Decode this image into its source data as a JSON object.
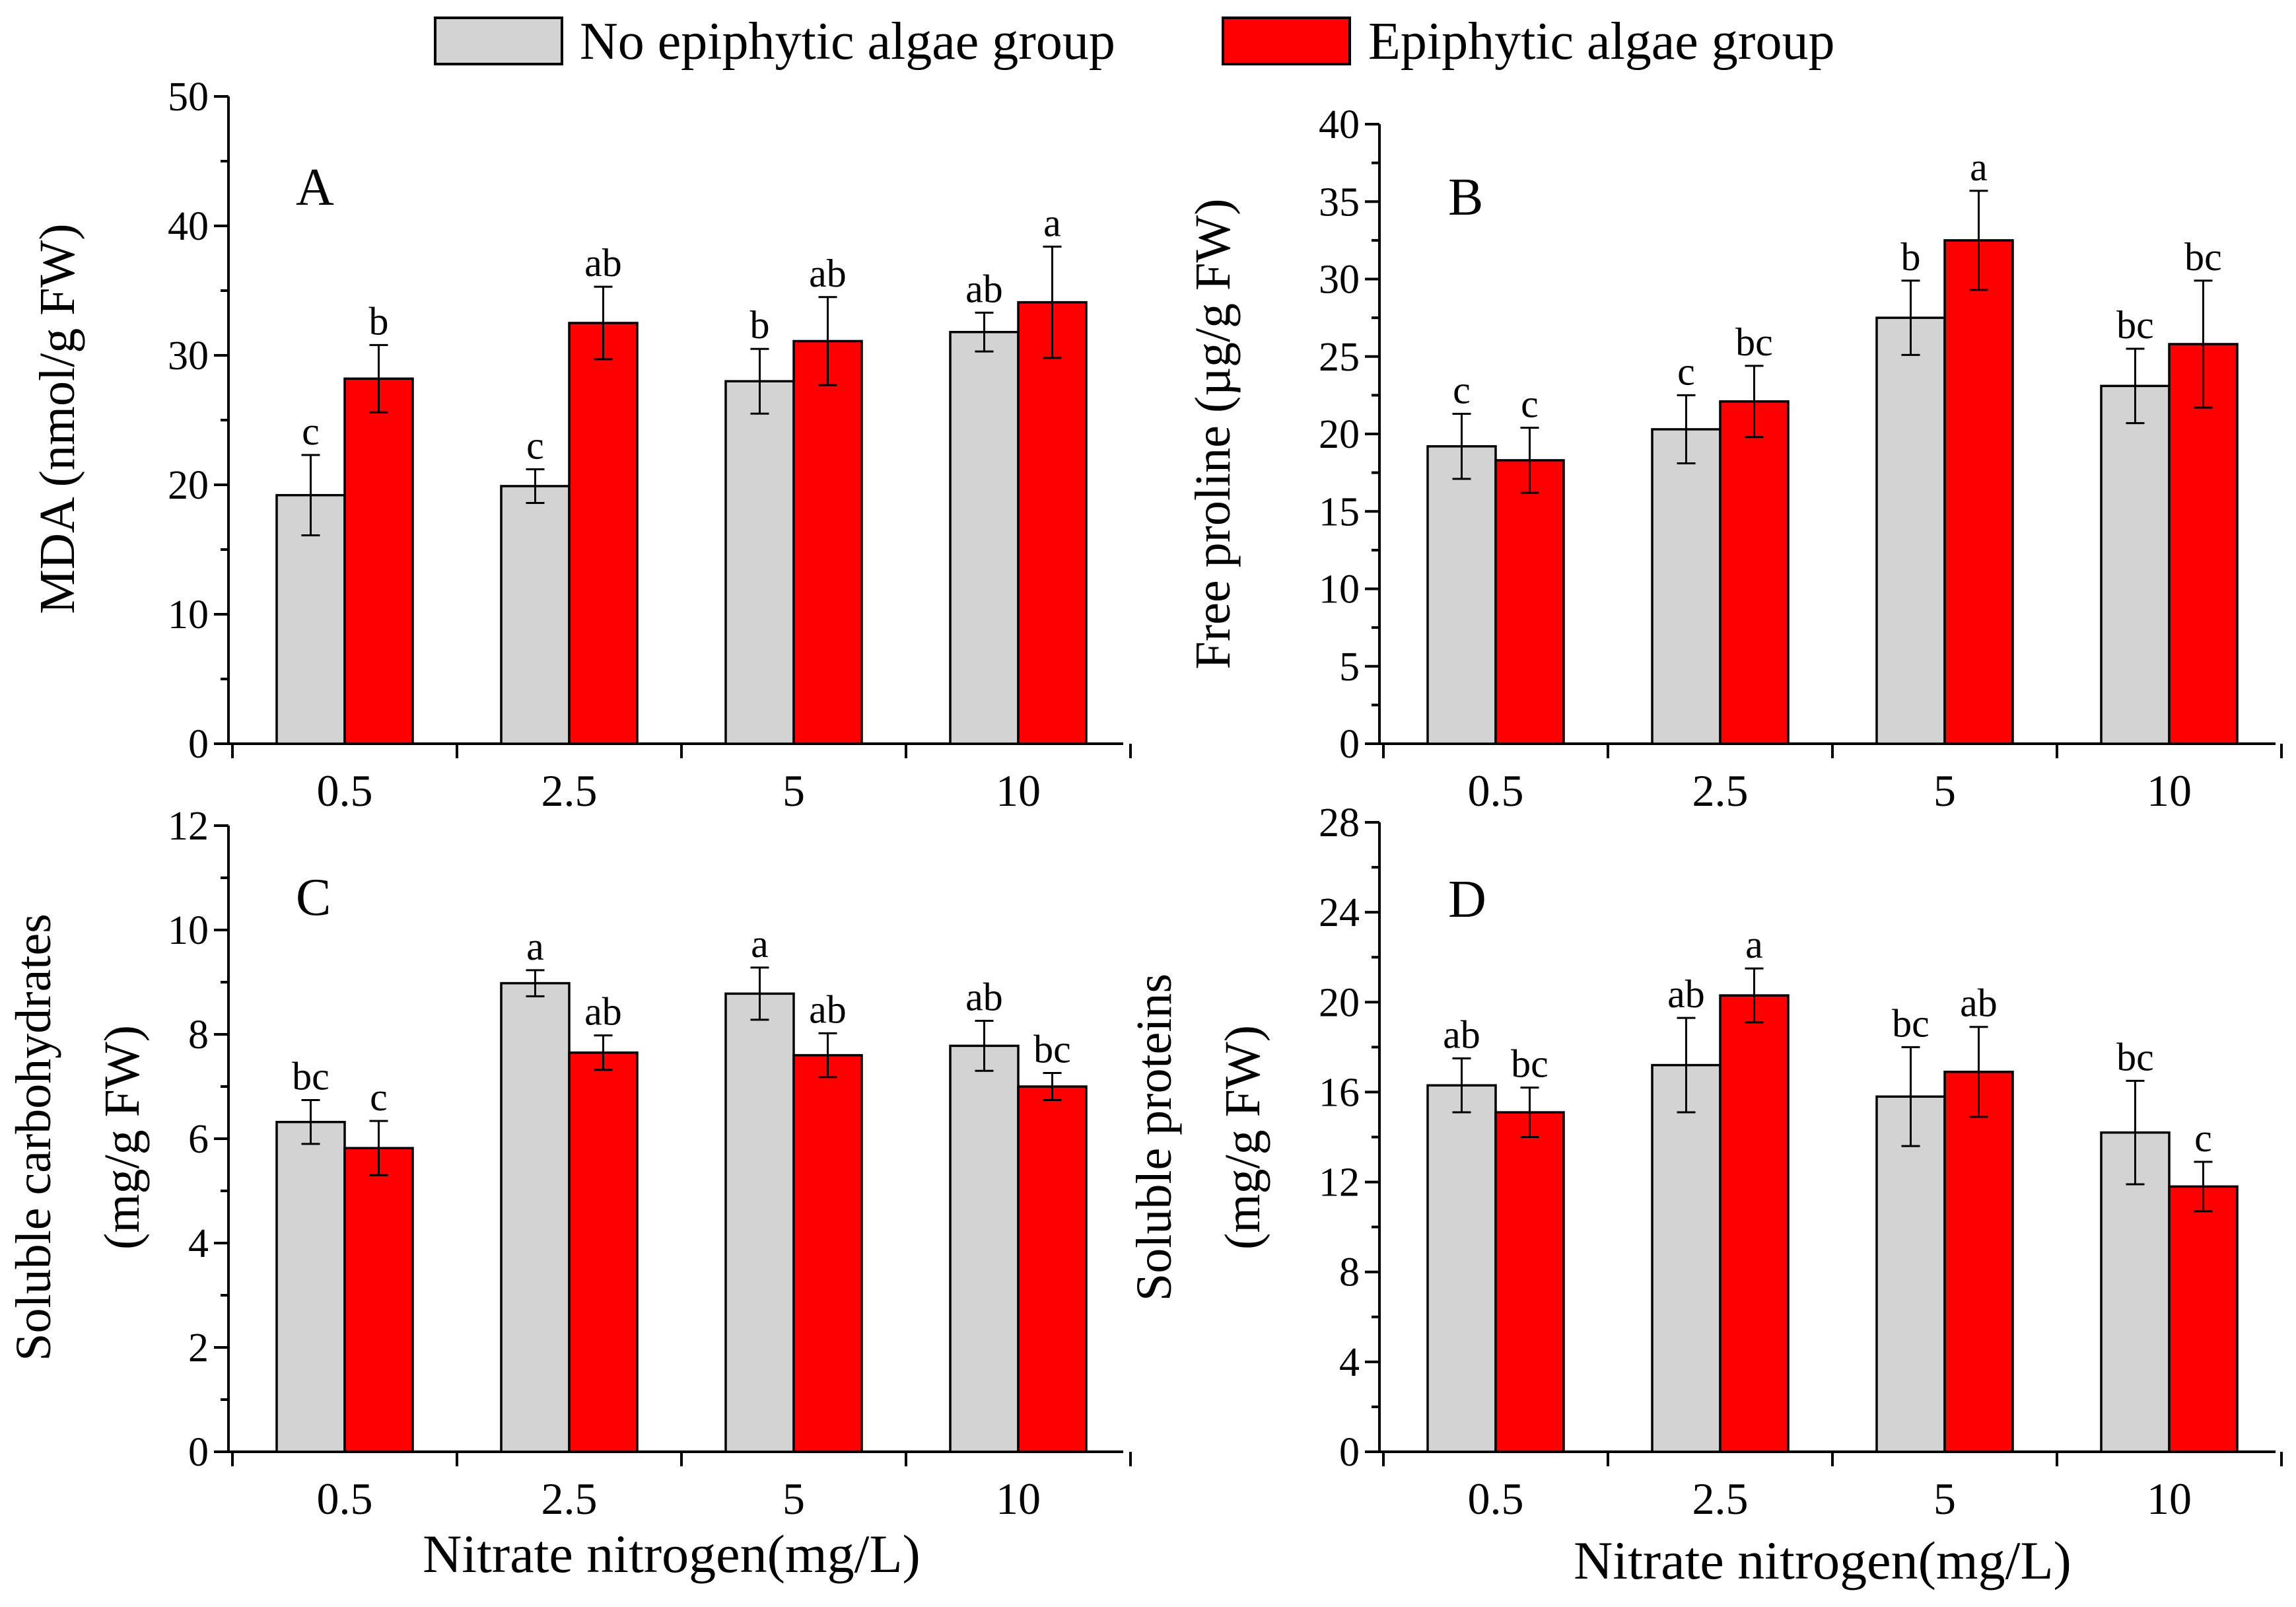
{
  "chart_data": {
    "type": "bar",
    "legend": {
      "placement": "top-center",
      "entries": [
        {
          "name": "No epiphytic algae group",
          "color": "#d3d3d3"
        },
        {
          "name": "Epiphytic algae group",
          "color": "#ff0000"
        }
      ]
    },
    "x_title": "Nitrate nitrogen(mg/L)",
    "categories": [
      "0.5",
      "2.5",
      "5",
      "10"
    ],
    "panels": [
      {
        "label": "A",
        "ylabel": "MDA (nmol/g  FW)",
        "ylabel_lines": [
          "MDA (nmol/g  FW)"
        ],
        "ylim": [
          0,
          50
        ],
        "yticks": [
          "0",
          "10",
          "20",
          "30",
          "40",
          "50"
        ],
        "show_xtitle": false,
        "series": [
          {
            "name": "No epiphytic algae group",
            "color": "#d3d3d3",
            "values": [
              19.2,
              19.9,
              28.0,
              31.8
            ],
            "errors": [
              3.1,
              1.3,
              2.5,
              1.5
            ],
            "letters": [
              "c",
              "c",
              "b",
              "ab"
            ]
          },
          {
            "name": "Epiphytic algae group",
            "color": "#ff0000",
            "values": [
              28.2,
              32.5,
              31.1,
              34.1
            ],
            "errors": [
              2.6,
              2.8,
              3.4,
              4.3
            ],
            "letters": [
              "b",
              "ab",
              "ab",
              "a"
            ]
          }
        ]
      },
      {
        "label": "B",
        "ylabel": "Free proline (µg/g FW)",
        "ylabel_lines": [
          "Free proline (µg/g FW)"
        ],
        "ylim": [
          0,
          40
        ],
        "yticks": [
          "0",
          "5",
          "10",
          "15",
          "20",
          "25",
          "30",
          "35",
          "40"
        ],
        "show_xtitle": false,
        "series": [
          {
            "name": "No epiphytic algae group",
            "color": "#d3d3d3",
            "values": [
              19.2,
              20.3,
              27.5,
              23.1
            ],
            "errors": [
              2.1,
              2.2,
              2.4,
              2.4
            ],
            "letters": [
              "c",
              "c",
              "b",
              "bc"
            ]
          },
          {
            "name": "Epiphytic algae group",
            "color": "#ff0000",
            "values": [
              18.3,
              22.1,
              32.5,
              25.8
            ],
            "errors": [
              2.1,
              2.3,
              3.2,
              4.1
            ],
            "letters": [
              "c",
              "bc",
              "a",
              "bc"
            ]
          }
        ]
      },
      {
        "label": "C",
        "ylabel": "Soluble carbohydrates (mg/g FW)",
        "ylabel_lines": [
          "Soluble carbohydrates",
          "(mg/g FW)"
        ],
        "ylim": [
          0,
          12
        ],
        "yticks": [
          "0",
          "2",
          "4",
          "6",
          "8",
          "10",
          "12"
        ],
        "show_xtitle": true,
        "series": [
          {
            "name": "No epiphytic algae group",
            "color": "#d3d3d3",
            "values": [
              6.32,
              8.98,
              8.78,
              7.78
            ],
            "errors": [
              0.42,
              0.25,
              0.5,
              0.48
            ],
            "letters": [
              "bc",
              "a",
              "a",
              "ab"
            ]
          },
          {
            "name": "Epiphytic algae group",
            "color": "#ff0000",
            "values": [
              5.82,
              7.65,
              7.6,
              7.0
            ],
            "errors": [
              0.52,
              0.33,
              0.42,
              0.26
            ],
            "letters": [
              "c",
              "ab",
              "ab",
              "bc"
            ]
          }
        ]
      },
      {
        "label": "D",
        "ylabel": "Soluble proteins (mg/g FW)",
        "ylabel_lines": [
          "Soluble proteins",
          "(mg/g FW)"
        ],
        "ylim": [
          0,
          28
        ],
        "yticks": [
          "0",
          "4",
          "8",
          "12",
          "16",
          "20",
          "24",
          "28"
        ],
        "show_xtitle": true,
        "series": [
          {
            "name": "No epiphytic algae group",
            "color": "#d3d3d3",
            "values": [
              16.3,
              17.2,
              15.8,
              14.2
            ],
            "errors": [
              1.2,
              2.1,
              2.2,
              2.3
            ],
            "letters": [
              "ab",
              "ab",
              "bc",
              "bc"
            ]
          },
          {
            "name": "Epiphytic algae group",
            "color": "#ff0000",
            "values": [
              15.1,
              20.3,
              16.9,
              11.8
            ],
            "errors": [
              1.1,
              1.2,
              2.0,
              1.1
            ],
            "letters": [
              "bc",
              "a",
              "ab",
              "c"
            ]
          }
        ]
      }
    ]
  }
}
